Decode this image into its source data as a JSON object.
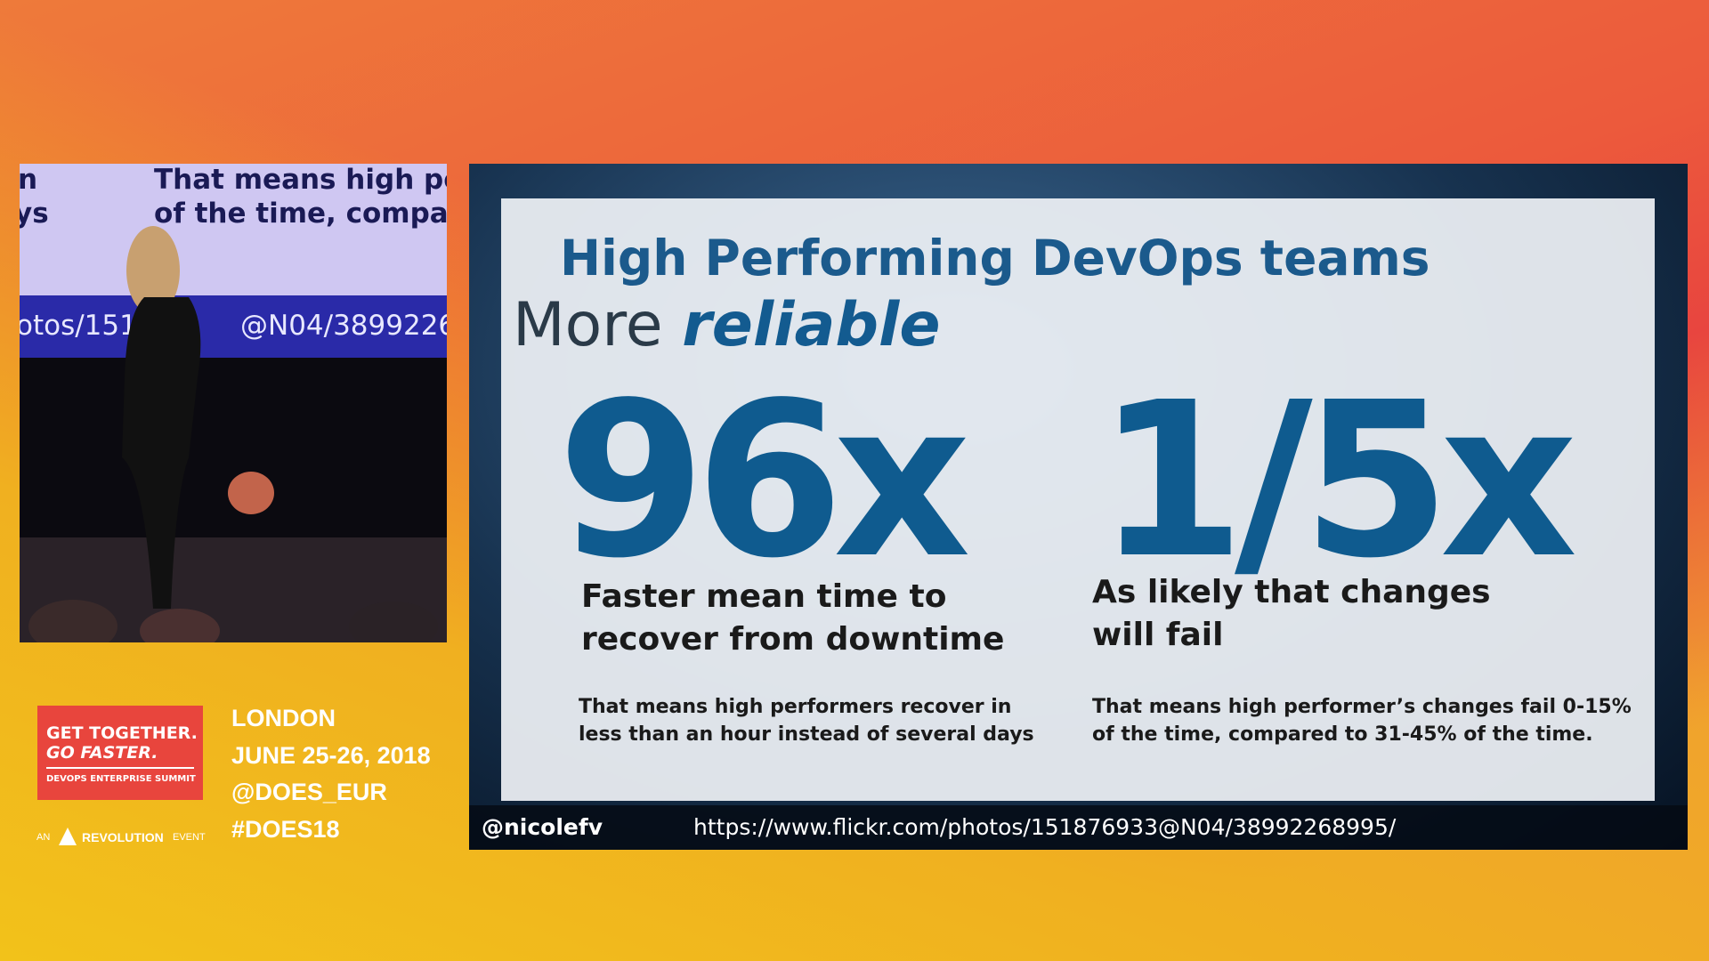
{
  "video": {
    "screen_lines": [
      "n",
      "ys",
      "That means high perf",
      "of the time, compare",
      "otos/151",
      "@N04/3899226"
    ]
  },
  "slide": {
    "title": "High Performing DevOps teams",
    "subtitle_prefix": "More",
    "subtitle_emphasis": "reliable",
    "stats": [
      {
        "figure": "96x",
        "heading_lines": [
          "Faster mean time to",
          "recover from downtime"
        ],
        "detail_lines": [
          "That means high performers recover in",
          "less than an hour instead of several days"
        ]
      },
      {
        "figure": "1/5x",
        "heading_lines": [
          "As likely that changes",
          "will fail"
        ],
        "detail_lines": [
          "That means high performer’s changes fail 0-15%",
          "of the time, compared to 31-45% of the time."
        ]
      }
    ],
    "handle": "@nicolefv",
    "url": "https://www.flickr.com/photos/151876933@N04/38992268995/"
  },
  "event": {
    "logo_lines": [
      "GET TOGETHER.",
      "GO FASTER.",
      "DEVOPS ENTERPRISE SUMMIT"
    ],
    "sponsor_prefix": "AN",
    "sponsor": "REVOLUTION",
    "sponsor_suffix": "EVENT",
    "details": [
      "LONDON",
      "JUNE 25-26, 2018",
      "@DOES_EUR",
      "#DOES18"
    ]
  }
}
